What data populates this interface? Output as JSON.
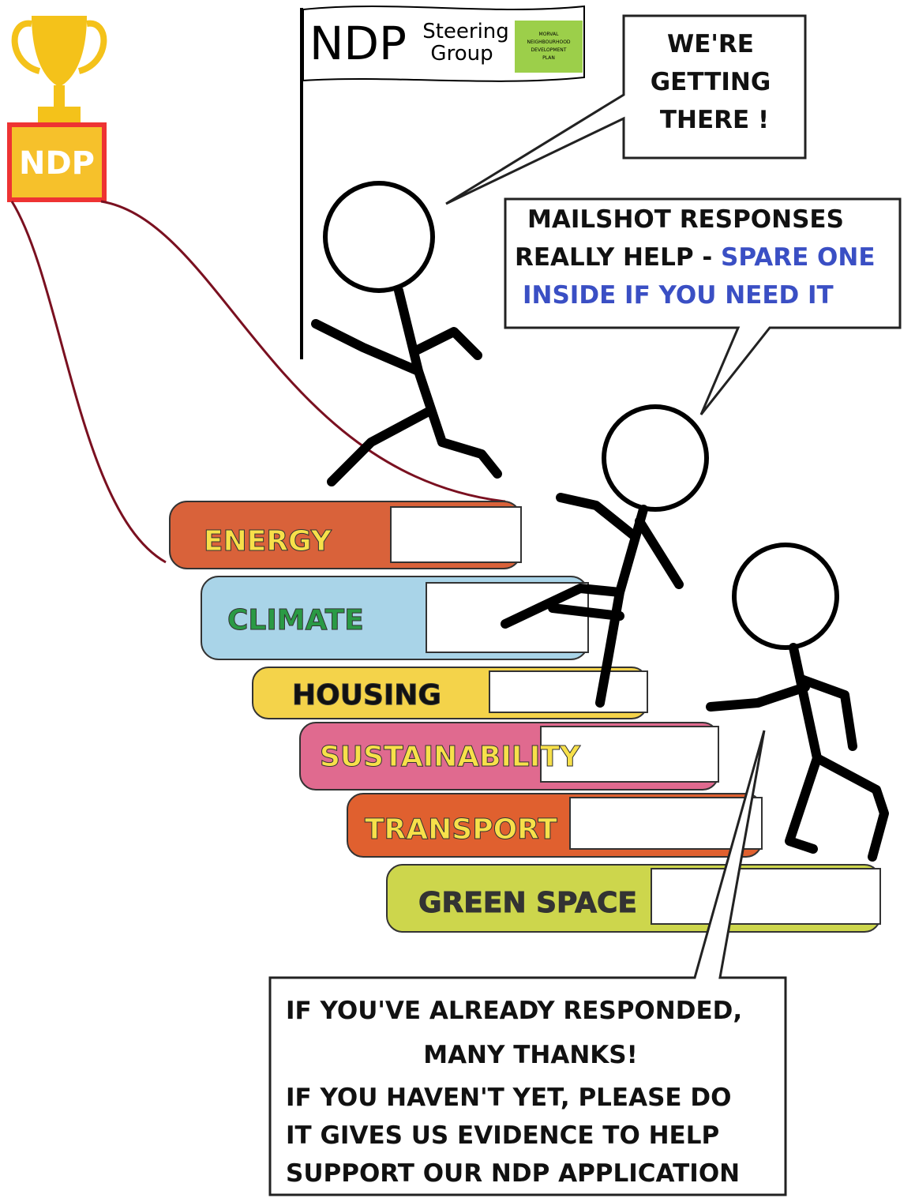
{
  "trophy": {
    "label": "NDP"
  },
  "flag": {
    "title": "NDP",
    "subtitle": [
      "Steering",
      "Group"
    ],
    "logo": [
      "MORVAL",
      "NEIGHBOURHOOD",
      "DEVELOPMENT",
      "PLAN"
    ]
  },
  "bubbles": [
    {
      "lines": [
        "WE'RE",
        "GETTING",
        "THERE !"
      ]
    },
    {
      "lines": [
        [
          "MAILSHOT RESPONSES"
        ],
        [
          "REALLY HELP - ",
          "SPARE ONE"
        ],
        [
          "INSIDE IF YOU NEED IT"
        ]
      ]
    },
    {
      "lines": [
        "IF YOU'VE ALREADY RESPONDED,",
        "MANY THANKS!",
        "IF YOU HAVEN'T YET, PLEASE DO",
        "IT GIVES US EVIDENCE TO HELP",
        "SUPPORT OUR NDP APPLICATION"
      ]
    }
  ],
  "books": [
    "ENERGY",
    "CLIMATE",
    "HOUSING",
    "SUSTAINABILITY",
    "TRANSPORT",
    "GREEN SPACE"
  ]
}
